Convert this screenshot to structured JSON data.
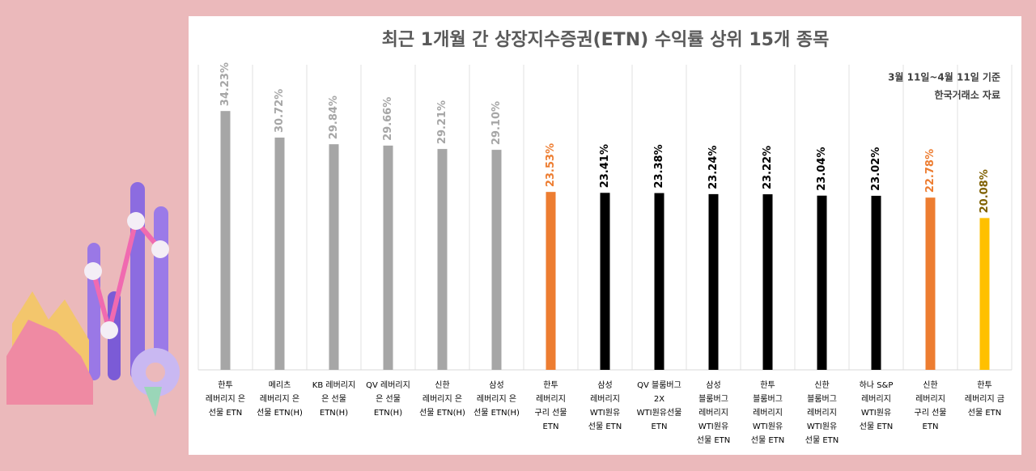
{
  "chart_data": {
    "type": "bar",
    "title": "최근 1개월 간 상장지수증권(ETN) 수익률 상위 15개 종목",
    "notes": [
      "3월 11일~4월 11일 기준",
      "한국거래소 자료"
    ],
    "categories": [
      [
        "한투",
        "레버리지 은",
        "선물 ETN"
      ],
      [
        "메리츠",
        "레버리지 은",
        "선물 ETN(H)"
      ],
      [
        "KB 레버리지",
        "은 선물",
        "ETN(H)"
      ],
      [
        "QV 레버리지",
        "은 선물",
        "ETN(H)"
      ],
      [
        "신한",
        "레버리지 은",
        "선물 ETN(H)"
      ],
      [
        "삼성",
        "레버리지 은",
        "선물 ETN(H)"
      ],
      [
        "한투",
        "레버리지",
        "구리 선물",
        "ETN"
      ],
      [
        "삼성",
        "레버리지",
        "WTI원유",
        "선물 ETN"
      ],
      [
        "QV 블룸버그",
        "2X",
        "WTI원유선물",
        "ETN"
      ],
      [
        "삼성",
        "블룸버그",
        "레버리지",
        "WTI원유",
        "선물 ETN"
      ],
      [
        "한투",
        "블룸버그",
        "레버리지",
        "WTI원유",
        "선물 ETN"
      ],
      [
        "신한",
        "블룸버그",
        "레버리지",
        "WTI원유",
        "선물 ETN"
      ],
      [
        "하나 S&P",
        "레버리지",
        "WTI원유",
        "선물 ETN"
      ],
      [
        "신한",
        "레버리지",
        "구리 선물",
        "ETN"
      ],
      [
        "한투",
        "레버리지 금",
        "선물 ETN"
      ]
    ],
    "values": [
      34.23,
      30.72,
      29.84,
      29.66,
      29.21,
      29.1,
      23.53,
      23.41,
      23.38,
      23.24,
      23.22,
      23.04,
      23.02,
      22.78,
      20.08
    ],
    "value_labels": [
      "34.23%",
      "30.72%",
      "29.84%",
      "29.66%",
      "29.21%",
      "29.10%",
      "23.53%",
      "23.41%",
      "23.38%",
      "23.24%",
      "23.22%",
      "23.04%",
      "23.02%",
      "22.78%",
      "20.08%"
    ],
    "colors": [
      "#a6a6a6",
      "#a6a6a6",
      "#a6a6a6",
      "#a6a6a6",
      "#a6a6a6",
      "#a6a6a6",
      "#ed7d31",
      "#000000",
      "#000000",
      "#000000",
      "#000000",
      "#000000",
      "#000000",
      "#ed7d31",
      "#ffc000"
    ],
    "ylim": [
      0,
      35
    ]
  }
}
